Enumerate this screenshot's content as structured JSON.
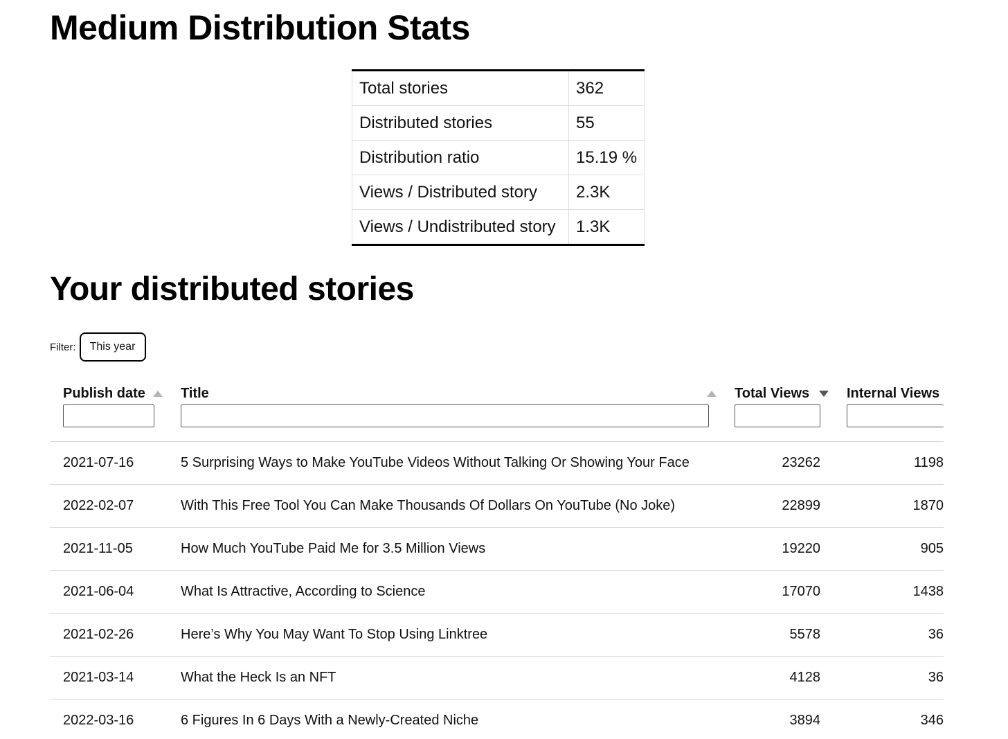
{
  "page": {
    "title": "Medium Distribution Stats",
    "section_title": "Your distributed stories"
  },
  "summary": {
    "rows": [
      {
        "label": "Total stories",
        "value": "362"
      },
      {
        "label": "Distributed stories",
        "value": "55"
      },
      {
        "label": "Distribution ratio",
        "value": "15.19 %"
      },
      {
        "label": "Views / Distributed story",
        "value": "2.3K"
      },
      {
        "label": "Views / Undistributed story",
        "value": "1.3K"
      }
    ]
  },
  "filter": {
    "label": "Filter:",
    "button_label": "This year"
  },
  "table": {
    "columns": {
      "publish_date": "Publish date",
      "title": "Title",
      "total_views": "Total Views",
      "internal_views": "Internal Views"
    },
    "sort": {
      "publish_date": "ascending-inactive",
      "title": "ascending-inactive",
      "total_views": "descending-active"
    },
    "rows": [
      {
        "date": "2021-07-16",
        "title": "5 Surprising Ways to Make YouTube Videos Without Talking Or Showing Your Face",
        "total_views": "23262",
        "internal_views": "1198"
      },
      {
        "date": "2022-02-07",
        "title": "With This Free Tool You Can Make Thousands Of Dollars On YouTube (No Joke)",
        "total_views": "22899",
        "internal_views": "1870"
      },
      {
        "date": "2021-11-05",
        "title": "How Much YouTube Paid Me for 3.5 Million Views",
        "total_views": "19220",
        "internal_views": "905"
      },
      {
        "date": "2021-06-04",
        "title": "What Is Attractive, According to Science",
        "total_views": "17070",
        "internal_views": "1438"
      },
      {
        "date": "2021-02-26",
        "title": "Here’s Why You May Want To Stop Using Linktree",
        "total_views": "5578",
        "internal_views": "36"
      },
      {
        "date": "2021-03-14",
        "title": "What the Heck Is an NFT",
        "total_views": "4128",
        "internal_views": "36"
      },
      {
        "date": "2022-03-16",
        "title": "6 Figures In 6 Days With a Newly-Created Niche",
        "total_views": "3894",
        "internal_views": "346"
      }
    ]
  },
  "colors": {
    "text": "#111111",
    "border": "#d8d8d8",
    "sort_inactive": "#b5b5b5",
    "sort_active": "#555555"
  }
}
